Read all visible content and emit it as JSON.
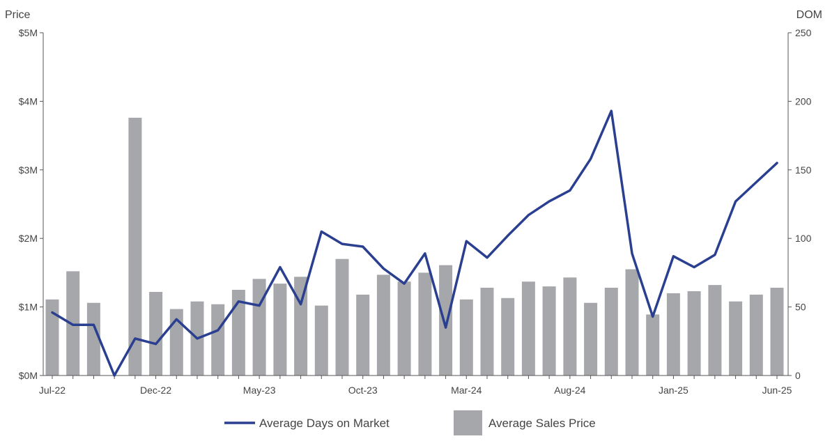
{
  "chart_data": {
    "type": "bar",
    "title": "",
    "y_left_label": "Price",
    "y_right_label": "DOM",
    "y_left_lim": [
      0,
      5000000
    ],
    "y_right_lim": [
      0,
      250
    ],
    "y_left_ticks": [
      {
        "value": 0,
        "label": "$0M"
      },
      {
        "value": 1000000,
        "label": "$1M"
      },
      {
        "value": 2000000,
        "label": "$2M"
      },
      {
        "value": 3000000,
        "label": "$3M"
      },
      {
        "value": 4000000,
        "label": "$4M"
      },
      {
        "value": 5000000,
        "label": "$5M"
      }
    ],
    "y_right_ticks": [
      {
        "value": 0,
        "label": "0"
      },
      {
        "value": 50,
        "label": "50"
      },
      {
        "value": 100,
        "label": "100"
      },
      {
        "value": 150,
        "label": "150"
      },
      {
        "value": 200,
        "label": "200"
      },
      {
        "value": 250,
        "label": "250"
      }
    ],
    "categories": [
      "Jul-22",
      "Aug-22",
      "Sep-22",
      "Oct-22",
      "Nov-22",
      "Dec-22",
      "Jan-23",
      "Feb-23",
      "Mar-23",
      "Apr-23",
      "May-23",
      "Jun-23",
      "Jul-23",
      "Aug-23",
      "Sep-23",
      "Oct-23",
      "Nov-23",
      "Dec-23",
      "Jan-24",
      "Feb-24",
      "Mar-24",
      "Apr-24",
      "May-24",
      "Jun-24",
      "Jul-24",
      "Aug-24",
      "Sep-24",
      "Oct-24",
      "Nov-24",
      "Dec-24",
      "Jan-25",
      "Feb-25",
      "Mar-25",
      "Apr-25",
      "May-25",
      "Jun-25"
    ],
    "x_tick_labels": [
      {
        "index": 0,
        "label": "Jul-22"
      },
      {
        "index": 5,
        "label": "Dec-22"
      },
      {
        "index": 10,
        "label": "May-23"
      },
      {
        "index": 15,
        "label": "Oct-23"
      },
      {
        "index": 20,
        "label": "Mar-24"
      },
      {
        "index": 25,
        "label": "Aug-24"
      },
      {
        "index": 30,
        "label": "Jan-25"
      },
      {
        "index": 35,
        "label": "Jun-25"
      }
    ],
    "series": [
      {
        "name": "Average Sales Price",
        "kind": "bar",
        "axis": "left",
        "color": "#a6a7ab",
        "values": [
          1110000,
          1520000,
          1060000,
          null,
          3760000,
          1220000,
          970000,
          1080000,
          1040000,
          1250000,
          1410000,
          1340000,
          1440000,
          1020000,
          1700000,
          1180000,
          1470000,
          1370000,
          1500000,
          1610000,
          1110000,
          1280000,
          1130000,
          1370000,
          1300000,
          1430000,
          1060000,
          1280000,
          1550000,
          890000,
          1200000,
          1230000,
          1320000,
          1080000,
          1180000,
          1280000
        ]
      },
      {
        "name": "Average Days on Market",
        "kind": "line",
        "axis": "right",
        "color": "#2a3f8f",
        "values": [
          46,
          37,
          37,
          0,
          27,
          23,
          41,
          27,
          33,
          54,
          51,
          79,
          52,
          105,
          96,
          94,
          78,
          67,
          89,
          35,
          98,
          86,
          102,
          117,
          127,
          135,
          158,
          193,
          89,
          43,
          87,
          79,
          88,
          127,
          141,
          155
        ]
      }
    ],
    "legend": {
      "placement": "bottom-center",
      "items": [
        {
          "label": "Average Days on Market",
          "kind": "line",
          "color": "#2a3f8f"
        },
        {
          "label": "Average Sales Price",
          "kind": "swatch",
          "color": "#a6a7ab"
        }
      ]
    },
    "grid": false
  }
}
